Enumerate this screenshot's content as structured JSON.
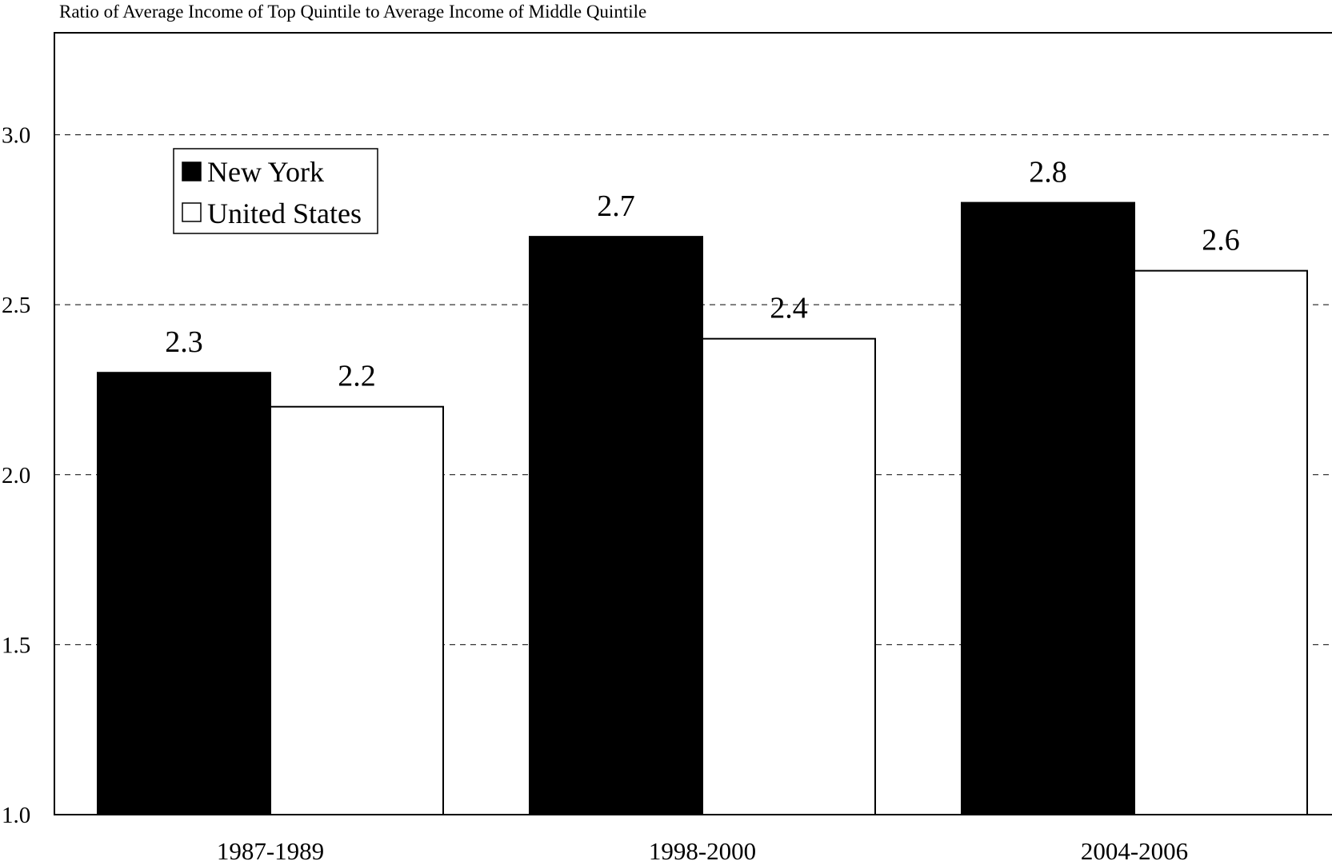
{
  "chart_data": {
    "type": "bar",
    "title": "Ratio of Average Income of Top Quintile to Average Income of Middle Quintile",
    "xlabel": "",
    "ylabel": "",
    "categories": [
      "1987-1989",
      "1998-2000",
      "2004-2006"
    ],
    "series": [
      {
        "name": "New York",
        "values": [
          2.3,
          2.7,
          2.8
        ],
        "color": "#000000"
      },
      {
        "name": "United States",
        "values": [
          2.2,
          2.4,
          2.6
        ],
        "color": "#ffffff"
      }
    ],
    "data_labels": [
      [
        "2.3",
        "2.7",
        "2.8"
      ],
      [
        "2.2",
        "2.4",
        "2.6"
      ]
    ],
    "ylim": [
      1.0,
      3.3
    ],
    "yticks": [
      1.0,
      1.5,
      2.0,
      2.5,
      3.0
    ],
    "ytick_labels": [
      "1.0",
      "1.5",
      "2.0",
      "2.5",
      "3.0"
    ],
    "grid": "horizontal dashed",
    "legend_position": "top-left"
  }
}
